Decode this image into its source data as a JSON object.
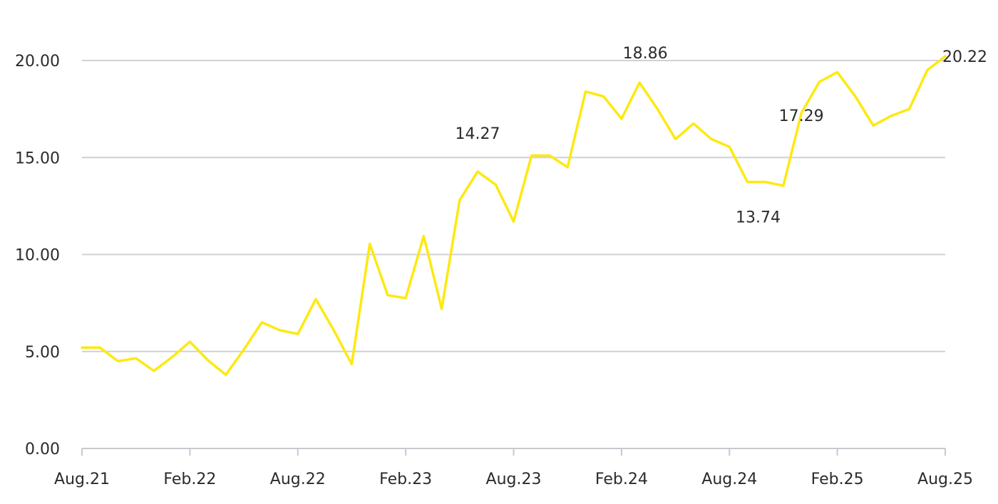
{
  "chart_data": {
    "type": "line",
    "title": "",
    "xlabel": "",
    "ylabel": "",
    "ylim": [
      0,
      20
    ],
    "grid": true,
    "line_color": "#fde910",
    "y_ticks": [
      "0.00",
      "5.00",
      "10.00",
      "15.00",
      "20.00"
    ],
    "x_ticks": [
      "Aug.21",
      "Feb.22",
      "Aug.22",
      "Feb.23",
      "Aug.23",
      "Feb.24",
      "Aug.24",
      "Feb.25",
      "Aug.25"
    ],
    "x": [
      "2021-08",
      "2021-09",
      "2021-10",
      "2021-11",
      "2021-12",
      "2022-01",
      "2022-02",
      "2022-03",
      "2022-04",
      "2022-05",
      "2022-06",
      "2022-07",
      "2022-08",
      "2022-09",
      "2022-10",
      "2022-11",
      "2022-12",
      "2023-01",
      "2023-02",
      "2023-03",
      "2023-04",
      "2023-05",
      "2023-06",
      "2023-07",
      "2023-08",
      "2023-09",
      "2023-10",
      "2023-11",
      "2023-12",
      "2024-01",
      "2024-02",
      "2024-03",
      "2024-04",
      "2024-05",
      "2024-06",
      "2024-07",
      "2024-08",
      "2024-09",
      "2024-10",
      "2024-11",
      "2024-12",
      "2025-01",
      "2025-02",
      "2025-03",
      "2025-04",
      "2025-05",
      "2025-06",
      "2025-07",
      "2025-08"
    ],
    "series": [
      {
        "values": [
          5.2,
          5.2,
          4.5,
          4.65,
          4.0,
          4.7,
          5.5,
          4.55,
          3.8,
          5.1,
          6.5,
          6.1,
          5.9,
          7.7,
          6.1,
          4.35,
          10.55,
          7.9,
          7.75,
          10.95,
          7.2,
          12.8,
          14.27,
          13.6,
          11.7,
          15.1,
          15.1,
          14.5,
          18.4,
          18.15,
          17.0,
          18.86,
          17.5,
          15.95,
          16.75,
          15.95,
          15.55,
          13.74,
          13.74,
          13.55,
          17.29,
          18.9,
          19.4,
          18.15,
          16.65,
          17.15,
          17.5,
          19.5,
          20.22
        ]
      }
    ],
    "annotations": [
      {
        "text": "14.27",
        "x": "2023-06",
        "y": 14.27
      },
      {
        "text": "18.86",
        "x": "2024-03",
        "y": 18.86
      },
      {
        "text": "13.74",
        "x": "2024-09",
        "y": 13.74
      },
      {
        "text": "17.29",
        "x": "2024-12",
        "y": 17.29
      },
      {
        "text": "20.22",
        "x": "2025-08",
        "y": 20.22
      }
    ]
  }
}
